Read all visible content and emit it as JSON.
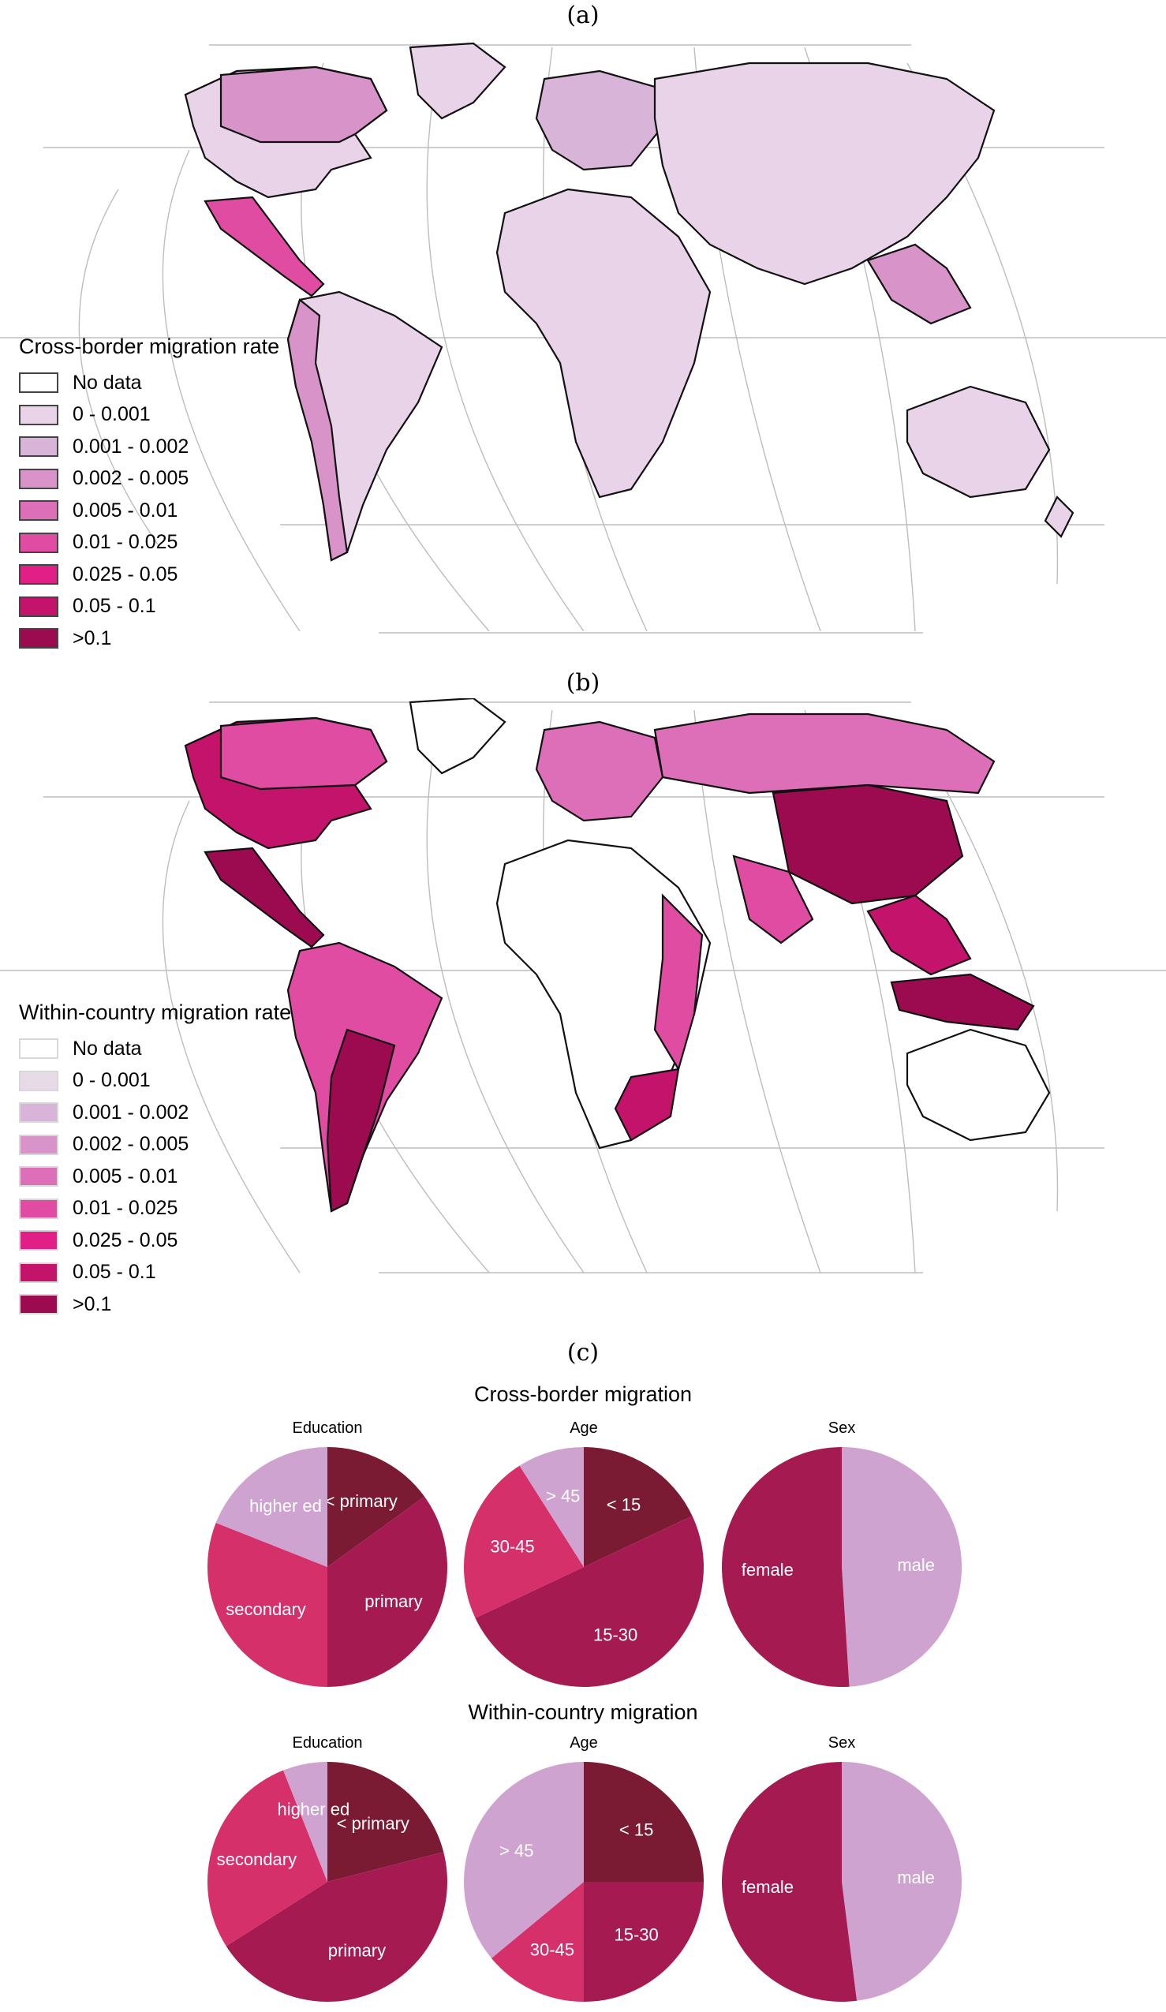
{
  "panel_labels": {
    "a": "(a)",
    "b": "(b)",
    "c": "(c)"
  },
  "map_a": {
    "legend_title": "Cross-border migration rate",
    "classes": [
      {
        "label": "No data",
        "color": "#ffffff"
      },
      {
        "label": "0 - 0.001",
        "color": "#e8d3e8"
      },
      {
        "label": "0.001 - 0.002",
        "color": "#d9b4d9"
      },
      {
        "label": "0.002 - 0.005",
        "color": "#d893c9"
      },
      {
        "label": "0.005 - 0.01",
        "color": "#dd6fb8"
      },
      {
        "label": "0.01 - 0.025",
        "color": "#df4ca2"
      },
      {
        "label": "0.025 - 0.05",
        "color": "#e21f87"
      },
      {
        "label": "0.05 - 0.1",
        "color": "#c4136a"
      },
      {
        "label": ">0.1",
        "color": "#9c0b50"
      }
    ]
  },
  "map_b": {
    "legend_title": "Within-country migration rate",
    "classes": [
      {
        "label": "No data",
        "color": "#ffffff"
      },
      {
        "label": "0 - 0.001",
        "color": "#e6dbe6"
      },
      {
        "label": "0.001 - 0.002",
        "color": "#d9b4d9"
      },
      {
        "label": "0.002 - 0.005",
        "color": "#d893c9"
      },
      {
        "label": "0.005 - 0.01",
        "color": "#dd6fb8"
      },
      {
        "label": "0.01 - 0.025",
        "color": "#df4ca2"
      },
      {
        "label": "0.025 - 0.05",
        "color": "#e21f87"
      },
      {
        "label": "0.05 - 0.1",
        "color": "#c4136a"
      },
      {
        "label": ">0.1",
        "color": "#9c0b50"
      }
    ]
  },
  "chart_data": [
    {
      "type": "pie",
      "group": "Cross-border migration",
      "title": "Education",
      "slices": [
        {
          "label": "< primary",
          "value": 0.15,
          "color": "#7a1a33"
        },
        {
          "label": "primary",
          "value": 0.35,
          "color": "#a61a52"
        },
        {
          "label": "secondary",
          "value": 0.31,
          "color": "#d6306a"
        },
        {
          "label": "higher ed",
          "value": 0.19,
          "color": "#cfa3cf"
        }
      ]
    },
    {
      "type": "pie",
      "group": "Cross-border migration",
      "title": "Age",
      "slices": [
        {
          "label": "< 15",
          "value": 0.18,
          "color": "#7a1a33"
        },
        {
          "label": "15-30",
          "value": 0.5,
          "color": "#a61a52"
        },
        {
          "label": "30-45",
          "value": 0.23,
          "color": "#d6306a"
        },
        {
          "label": "> 45",
          "value": 0.09,
          "color": "#cfa3cf"
        }
      ]
    },
    {
      "type": "pie",
      "group": "Cross-border migration",
      "title": "Sex",
      "slices": [
        {
          "label": "male",
          "value": 0.49,
          "color": "#cfa3cf"
        },
        {
          "label": "female",
          "value": 0.51,
          "color": "#a61a52"
        }
      ]
    },
    {
      "type": "pie",
      "group": "Within-country migration",
      "title": "Education",
      "slices": [
        {
          "label": "< primary",
          "value": 0.21,
          "color": "#7a1a33"
        },
        {
          "label": "primary",
          "value": 0.45,
          "color": "#a61a52"
        },
        {
          "label": "secondary",
          "value": 0.28,
          "color": "#d6306a"
        },
        {
          "label": "higher ed",
          "value": 0.06,
          "color": "#cfa3cf"
        }
      ]
    },
    {
      "type": "pie",
      "group": "Within-country migration",
      "title": "Age",
      "slices": [
        {
          "label": "< 15",
          "value": 0.25,
          "color": "#7a1a33"
        },
        {
          "label": "15-30",
          "value": 0.25,
          "color": "#a61a52"
        },
        {
          "label": "30-45",
          "value": 0.14,
          "color": "#d6306a"
        },
        {
          "label": "> 45",
          "value": 0.36,
          "color": "#cfa3cf"
        }
      ]
    },
    {
      "type": "pie",
      "group": "Within-country migration",
      "title": "Sex",
      "slices": [
        {
          "label": "male",
          "value": 0.48,
          "color": "#cfa3cf"
        },
        {
          "label": "female",
          "value": 0.52,
          "color": "#a61a52"
        }
      ]
    }
  ],
  "pie_groups": [
    "Cross-border migration",
    "Within-country migration"
  ]
}
